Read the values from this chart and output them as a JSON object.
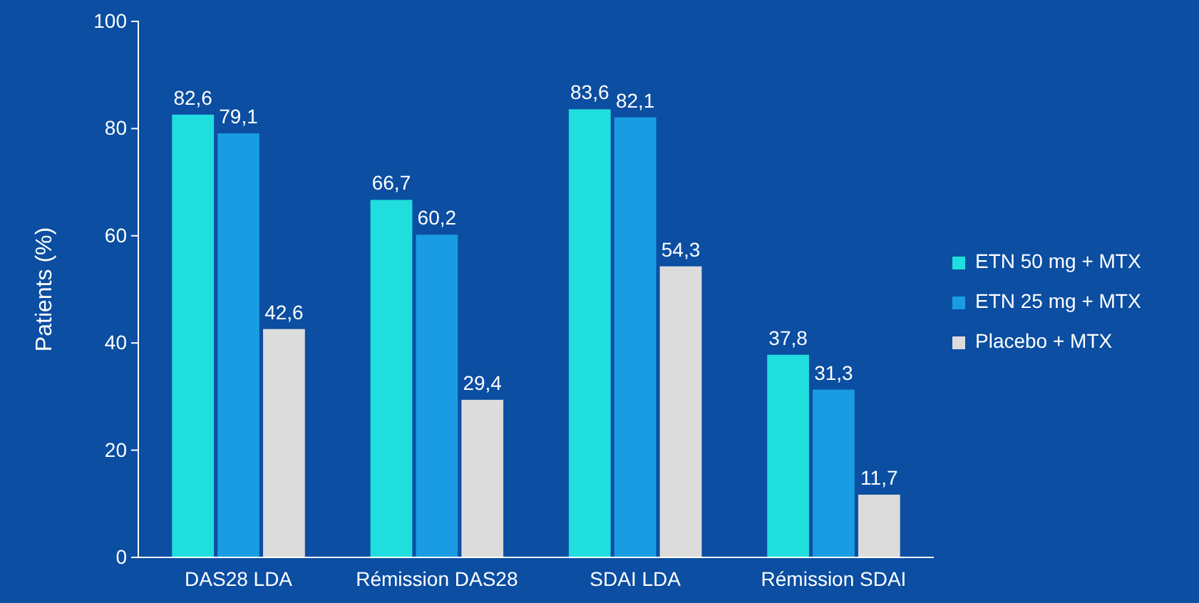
{
  "chart_data": {
    "type": "bar",
    "ylabel": "Patients (%)",
    "categories": [
      "DAS28 LDA",
      "Rémission DAS28",
      "SDAI LDA",
      "Rémission SDAI"
    ],
    "series": [
      {
        "name": "ETN 50 mg + MTX",
        "color": "#20dede",
        "values": [
          82.6,
          66.7,
          83.6,
          37.8
        ],
        "value_labels": [
          "82,6",
          "66,7",
          "83,6",
          "37,8"
        ]
      },
      {
        "name": "ETN 25 mg + MTX",
        "color": "#1a9ce2",
        "values": [
          79.1,
          60.2,
          82.1,
          31.3
        ],
        "value_labels": [
          "79,1",
          "60,2",
          "82,1",
          "31,3"
        ]
      },
      {
        "name": "Placebo + MTX",
        "color": "#dcdcdc",
        "values": [
          42.6,
          29.4,
          54.3,
          11.7
        ],
        "value_labels": [
          "42,6",
          "29,4",
          "54,3",
          "11,7"
        ]
      }
    ],
    "ylim": [
      0,
      100
    ],
    "yticks": [
      0,
      20,
      40,
      60,
      80,
      100
    ],
    "legend": "right",
    "grid": false
  }
}
